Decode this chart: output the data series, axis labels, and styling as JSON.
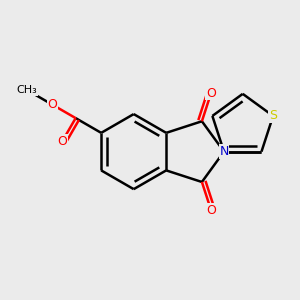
{
  "background_color": "#ebebeb",
  "bond_color": "#000000",
  "bond_width": 1.8,
  "atom_colors": {
    "O": "#ff0000",
    "N": "#0000cc",
    "S": "#cccc00",
    "C": "#000000"
  },
  "figsize": [
    3.0,
    3.0
  ],
  "dpi": 100,
  "font_size": 9
}
